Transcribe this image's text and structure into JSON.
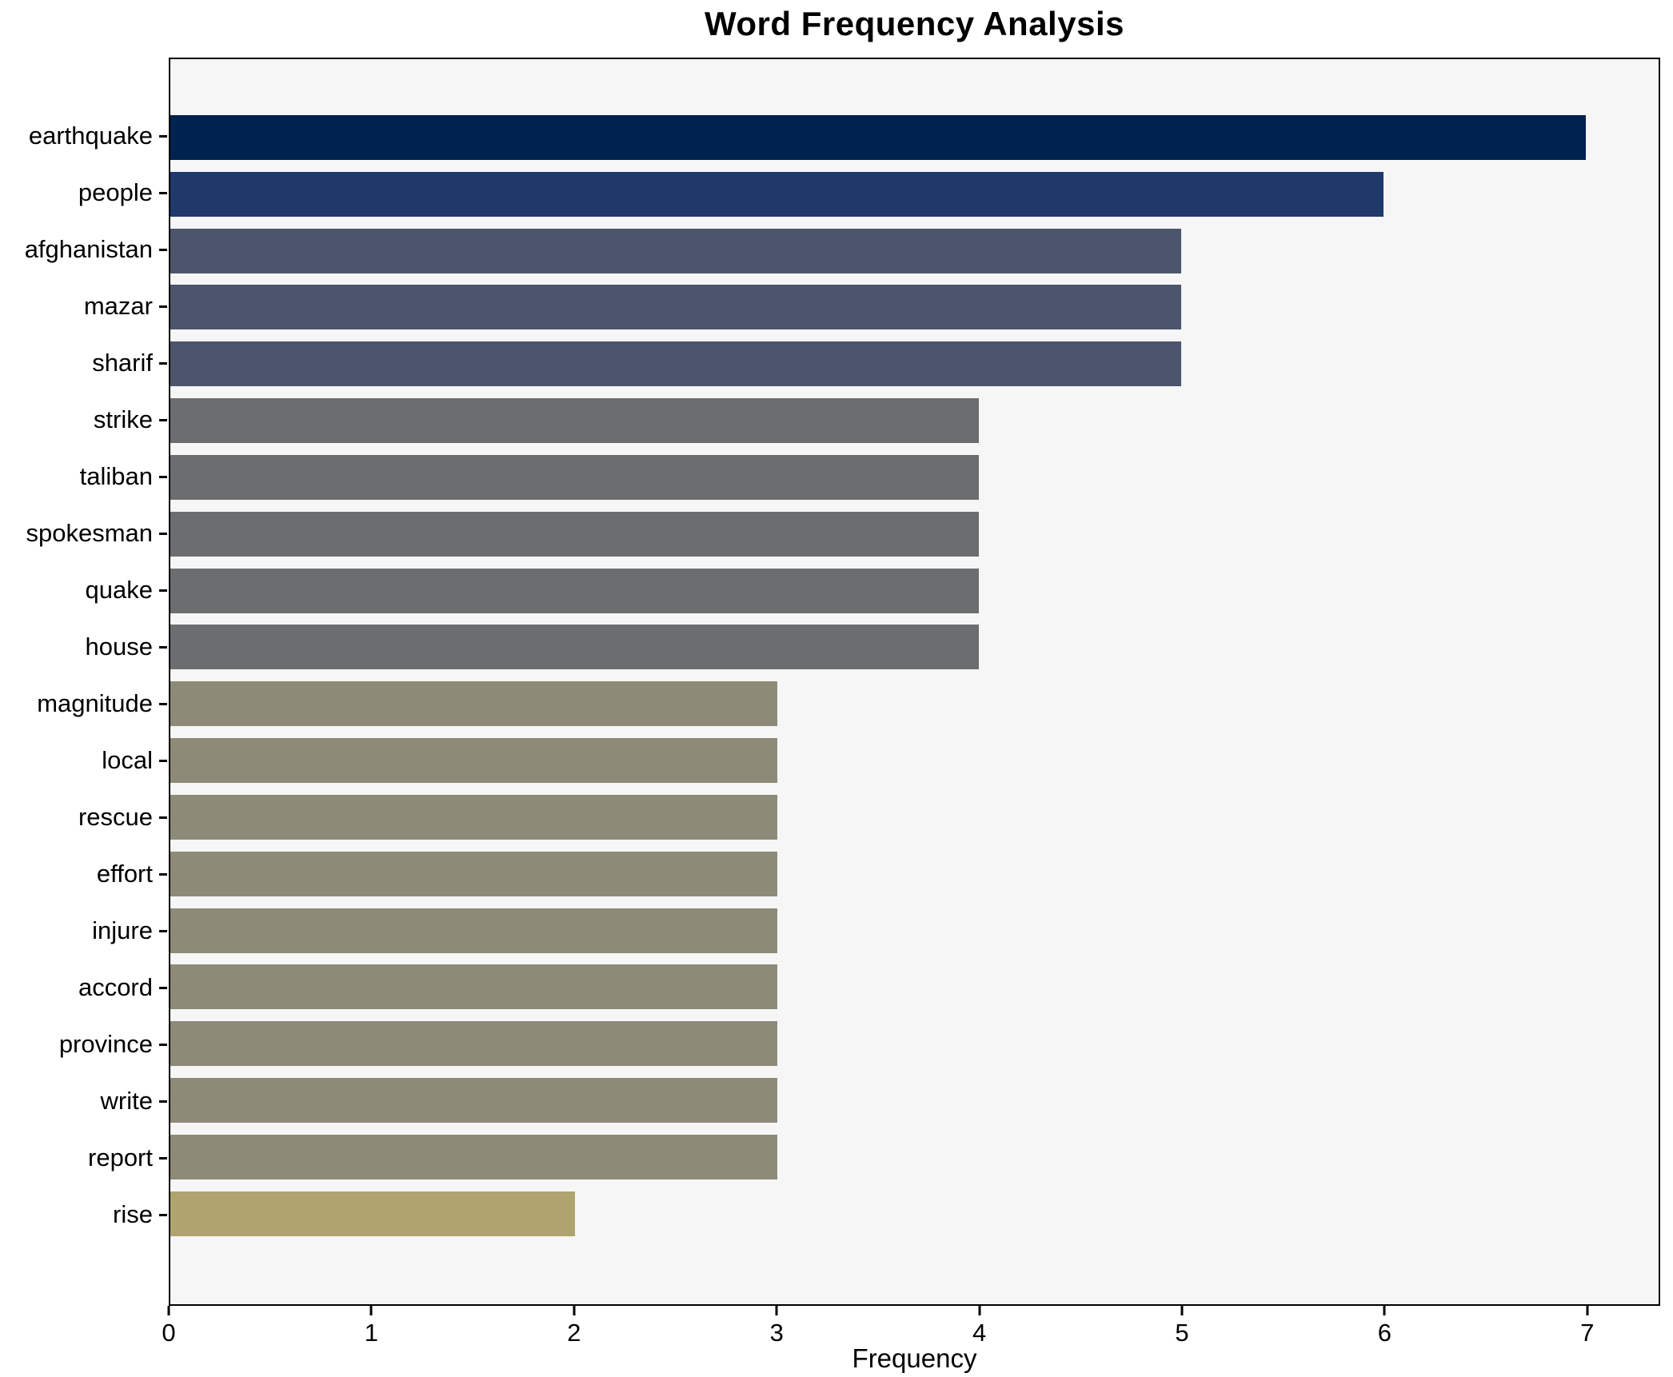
{
  "chart_data": {
    "type": "bar",
    "orientation": "horizontal",
    "title": "Word Frequency Analysis",
    "xlabel": "Frequency",
    "ylabel": "",
    "categories": [
      "earthquake",
      "people",
      "afghanistan",
      "mazar",
      "sharif",
      "strike",
      "taliban",
      "spokesman",
      "quake",
      "house",
      "magnitude",
      "local",
      "rescue",
      "effort",
      "injure",
      "accord",
      "province",
      "write",
      "report",
      "rise"
    ],
    "values": [
      7,
      6,
      5,
      5,
      5,
      4,
      4,
      4,
      4,
      4,
      3,
      3,
      3,
      3,
      3,
      3,
      3,
      3,
      3,
      2
    ],
    "bar_colors": [
      "#00224e",
      "#20396b",
      "#4c556c",
      "#4c556c",
      "#4c556c",
      "#6b6d6f",
      "#6b6d6f",
      "#6b6d6f",
      "#6b6d6f",
      "#6b6d6f",
      "#8e8a78",
      "#8e8a78",
      "#8e8a78",
      "#8e8a78",
      "#8e8a78",
      "#8e8a78",
      "#8e8a78",
      "#8e8a78",
      "#8e8a78",
      "#b0a46e"
    ],
    "x_ticks": [
      0,
      1,
      2,
      3,
      4,
      5,
      6,
      7
    ],
    "xlim": [
      0,
      7.36
    ],
    "grid": false,
    "legend": "none",
    "plot_background": "#f5f6f5",
    "figure_background": "#ffffff",
    "frame_color": "#000000",
    "text_color": "#000000"
  }
}
